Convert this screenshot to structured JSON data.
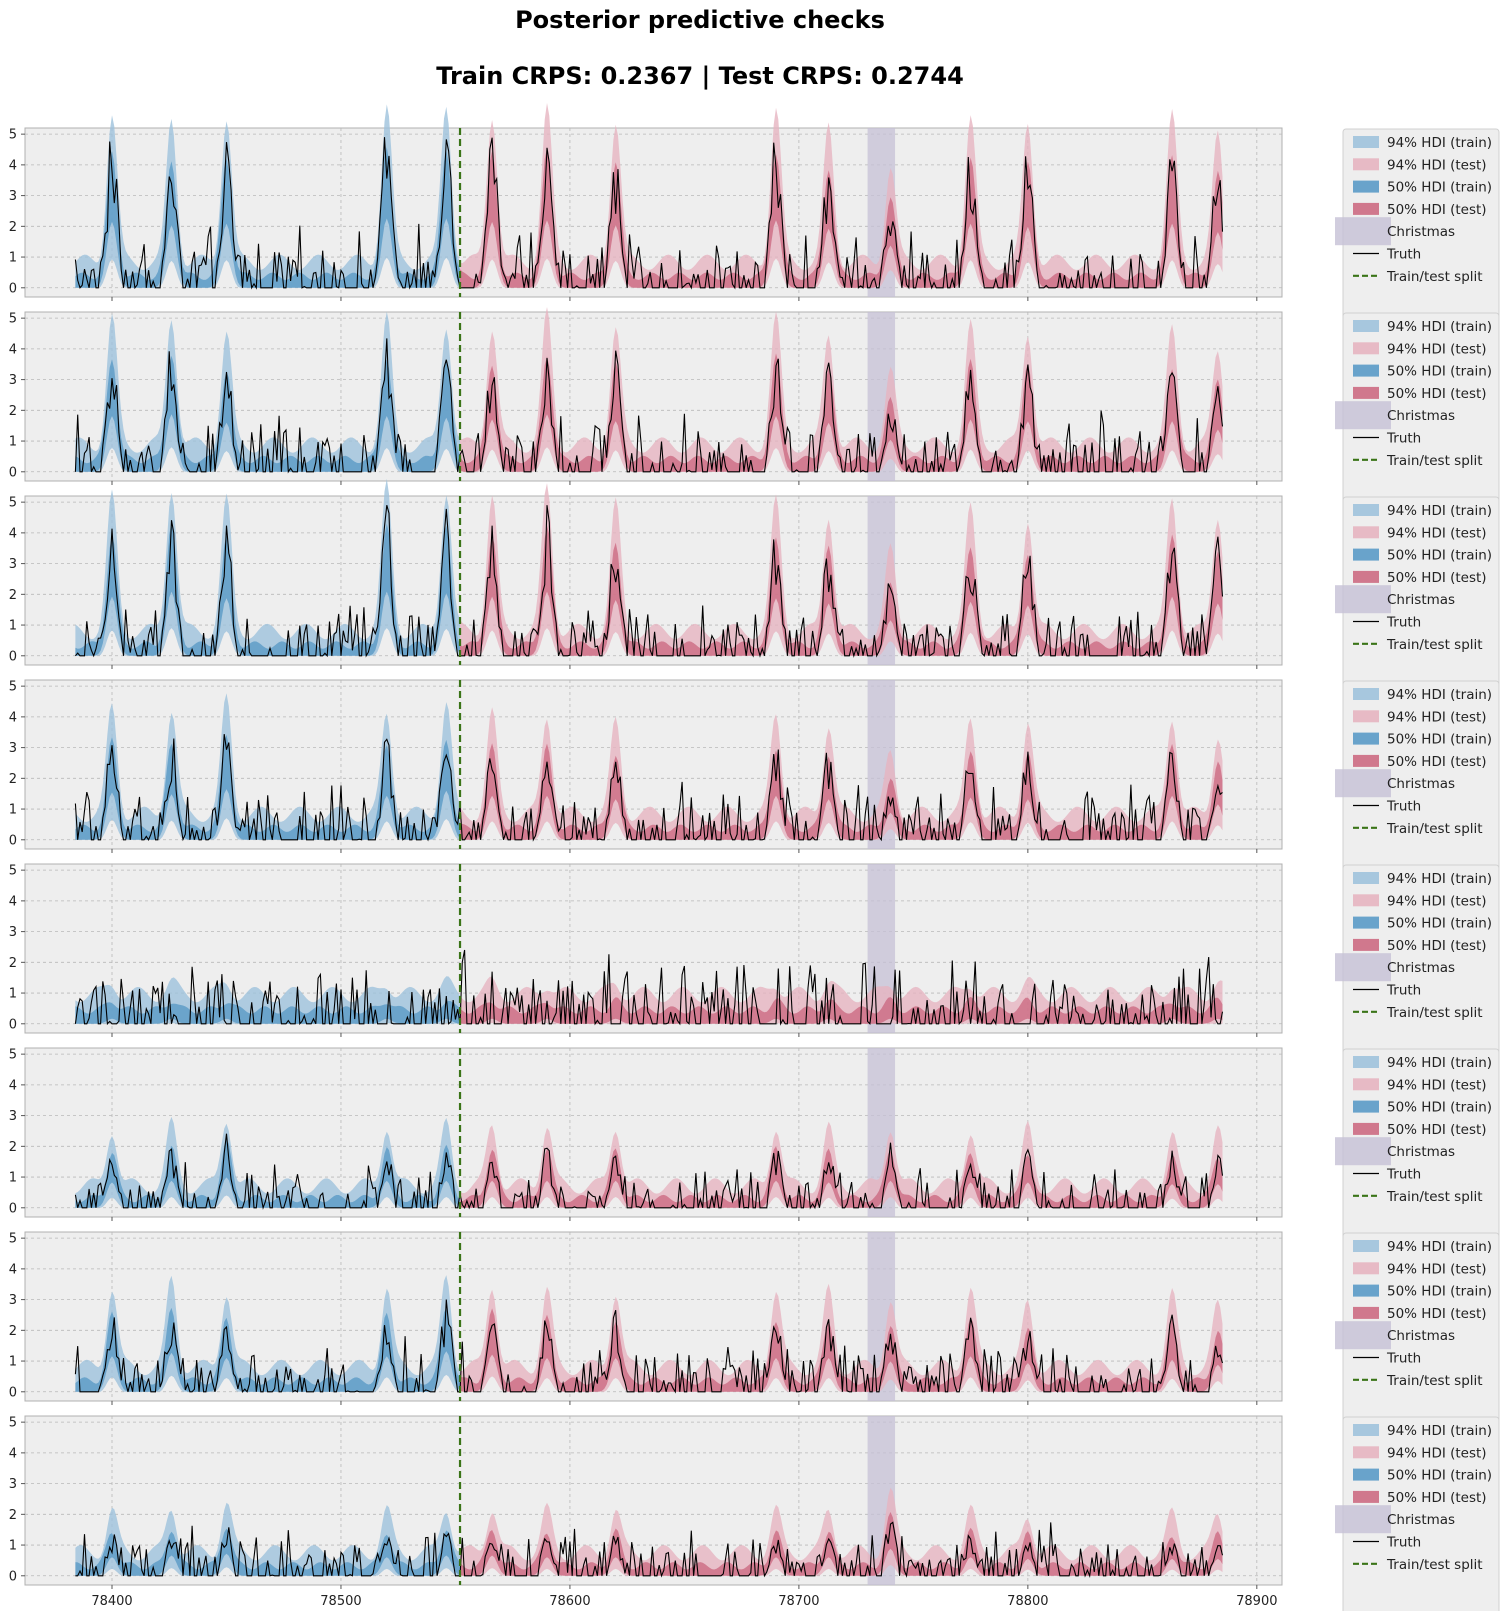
{
  "title_line1": "Posterior predictive checks",
  "title_line2": "Train CRPS: 0.2367 | Test CRPS: 0.2744",
  "colors": {
    "train_94": "#9ec2dc",
    "test_94": "#e6b4c0",
    "train_50": "#5a9ac6",
    "test_50": "#cc6a82",
    "christmas": "#c6c0d6",
    "truth": "#000000",
    "split": "#3a7417",
    "panel_bg": "#eeeeee",
    "grid": "#b8b8b8"
  },
  "legend": [
    {
      "key": "train_94",
      "label": "94% HDI (train)"
    },
    {
      "key": "test_94",
      "label": "94% HDI (test)"
    },
    {
      "key": "train_50",
      "label": "50% HDI (train)"
    },
    {
      "key": "test_50",
      "label": "50% HDI (test)"
    },
    {
      "key": "christmas",
      "label": "Christmas"
    },
    {
      "key": "truth",
      "label": "Truth"
    },
    {
      "key": "split",
      "label": "Train/test split"
    }
  ],
  "chart_data": {
    "type": "area",
    "panel_count": 8,
    "x_range": [
      78384,
      78885
    ],
    "xlim": [
      78362,
      78911
    ],
    "ylim": [
      -0.3,
      5.2
    ],
    "x_ticks": [
      78400,
      78500,
      78600,
      78700,
      78800,
      78900
    ],
    "y_ticks": [
      0,
      1,
      2,
      3,
      4,
      5
    ],
    "train_test_split": 78552,
    "christmas": [
      78730,
      78742
    ],
    "peak_centers": [
      78400,
      78426,
      78450,
      78520,
      78546,
      78566,
      78590,
      78620,
      78690,
      78713,
      78740,
      78775,
      78800,
      78863,
      78883
    ],
    "peak_heights": [
      [
        3.9,
        3.7,
        3.8,
        4.1,
        4.1,
        3.9,
        4.0,
        3.7,
        4.0,
        3.5,
        2.5,
        3.8,
        3.6,
        3.8,
        3.3
      ],
      [
        3.3,
        3.4,
        2.9,
        3.3,
        3.2,
        3.1,
        3.4,
        3.0,
        3.3,
        2.9,
        1.9,
        3.1,
        3.0,
        3.0,
        2.5
      ],
      [
        3.5,
        3.8,
        3.4,
        3.8,
        3.7,
        3.5,
        3.8,
        3.3,
        3.4,
        3.1,
        2.1,
        3.2,
        3.0,
        3.5,
        3.1
      ],
      [
        2.8,
        2.7,
        3.0,
        2.6,
        2.9,
        2.6,
        2.6,
        2.4,
        2.6,
        2.4,
        1.6,
        2.5,
        2.4,
        2.6,
        2.1
      ],
      [
        0.3,
        0.3,
        0.3,
        0.3,
        0.3,
        0.3,
        0.3,
        0.3,
        0.3,
        0.3,
        0.3,
        0.3,
        0.3,
        0.3,
        0.3
      ],
      [
        1.5,
        1.6,
        1.8,
        1.6,
        1.6,
        1.6,
        1.6,
        1.6,
        1.6,
        1.5,
        1.6,
        1.5,
        1.5,
        1.4,
        1.4
      ],
      [
        2.1,
        2.3,
        2.0,
        2.1,
        2.4,
        2.2,
        2.0,
        2.0,
        2.0,
        2.0,
        1.8,
        2.1,
        1.7,
        1.9,
        1.6
      ],
      [
        1.1,
        1.2,
        1.3,
        1.1,
        1.2,
        1.2,
        1.1,
        1.1,
        1.1,
        1.1,
        1.6,
        1.1,
        1.0,
        1.0,
        1.0
      ]
    ],
    "noise_levels": [
      0.7,
      0.8,
      0.6,
      0.7,
      1.0,
      0.4,
      0.6,
      0.5
    ],
    "grid": true,
    "legend_position": "right of each panel"
  }
}
